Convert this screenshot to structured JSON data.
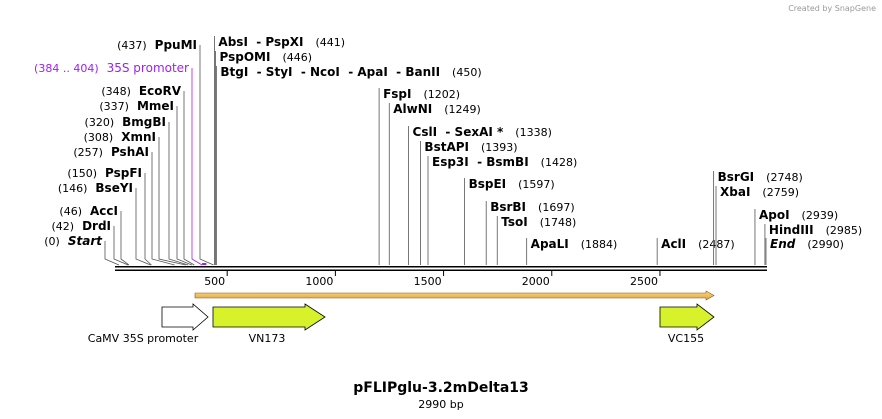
{
  "header": {
    "credit": "Created by SnapGene"
  },
  "map": {
    "title": "pFLIPglu-3.2mDelta13",
    "length": "2990 bp",
    "ruler": [
      500,
      1000,
      1500,
      2000,
      2500
    ],
    "left_labels": [
      {
        "site": "(437)",
        "name": "PpuMI"
      },
      {
        "site": "(384 .. 404)",
        "name": "35S promoter",
        "color": "#a020f0",
        "bold": false
      },
      {
        "site": "(348)",
        "name": "EcoRV"
      },
      {
        "site": "(337)",
        "name": "MmeI"
      },
      {
        "site": "(320)",
        "name": "BmgBI"
      },
      {
        "site": "(308)",
        "name": "XmnI"
      },
      {
        "site": "(257)",
        "name": "PshAI"
      },
      {
        "site": "(150)",
        "name": "PspFI"
      },
      {
        "site": "(146)",
        "name": "BseYI"
      },
      {
        "site": "(46)",
        "name": "AccI"
      },
      {
        "site": "(42)",
        "name": "DrdI"
      },
      {
        "site": "(0)",
        "name": "Start",
        "italic": true
      }
    ],
    "right_labels": [
      {
        "name": "AbsI  - PspXI",
        "site": "(441)"
      },
      {
        "name": "PspOMI",
        "site": "(446)"
      },
      {
        "name": "BtgI  - StyI  - NcoI  - ApaI  - BanII",
        "site": "(450)"
      },
      {
        "name": "FspI",
        "site": "(1202)"
      },
      {
        "name": "AlwNI",
        "site": "(1249)"
      },
      {
        "name": "CslI  - SexAI *",
        "site": "(1338)"
      },
      {
        "name": "BstAPI",
        "site": "(1393)"
      },
      {
        "name": "Esp3I  - BsmBI",
        "site": "(1428)"
      },
      {
        "name": "BspEI",
        "site": "(1597)"
      },
      {
        "name": "BsrBI",
        "site": "(1697)"
      },
      {
        "name": "TsoI",
        "site": "(1748)"
      },
      {
        "name": "ApaLI",
        "site": "(1884)"
      },
      {
        "name": "AclI",
        "site": "(2487)"
      },
      {
        "name": "BsrGI",
        "site": "(2748)"
      },
      {
        "name": "XbaI",
        "site": "(2759)"
      },
      {
        "name": "ApoI",
        "site": "(2939)"
      },
      {
        "name": "HindIII",
        "site": "(2985)"
      },
      {
        "name": "End",
        "site": "(2990)",
        "italic": true
      }
    ],
    "features": [
      {
        "name": "CaMV 35S promoter"
      },
      {
        "name": "VN173"
      },
      {
        "name": "VC155"
      }
    ]
  }
}
